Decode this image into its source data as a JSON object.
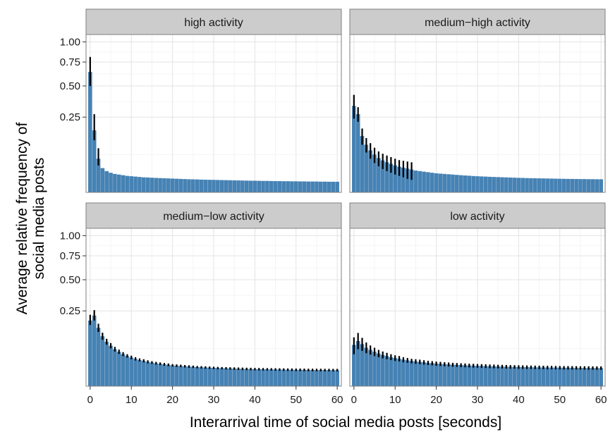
{
  "chart_data": {
    "type": "bar",
    "layout": "facet-grid 2x2",
    "xlabel": "Interarrival time of social media posts [seconds]",
    "ylabel_lines": [
      "Average relative frequency of",
      "social media posts"
    ],
    "x_ticks": [
      0,
      10,
      20,
      30,
      40,
      50,
      60
    ],
    "xlim": [
      -1,
      61
    ],
    "y_scale": "sqrt",
    "y_ticks": [
      0.25,
      0.5,
      0.75,
      1.0
    ],
    "y_tick_labels": [
      "0.25",
      "0.50",
      "0.75",
      "1.00"
    ],
    "ylim": [
      0,
      1.1
    ],
    "bar_color": "#4682b4",
    "errorbar_color": "#000000",
    "panels": [
      {
        "name": "high activity",
        "values": [
          0.64,
          0.17,
          0.05,
          0.026,
          0.02,
          0.017,
          0.015,
          0.014,
          0.013,
          0.012,
          0.0115,
          0.011,
          0.0105,
          0.01,
          0.0098,
          0.0095,
          0.0092,
          0.009,
          0.0088,
          0.0086,
          0.0084,
          0.0082,
          0.008,
          0.0078,
          0.0076,
          0.0075,
          0.0074,
          0.0072,
          0.0071,
          0.007,
          0.0069,
          0.0068,
          0.0067,
          0.0066,
          0.0065,
          0.0064,
          0.0063,
          0.0062,
          0.0061,
          0.006,
          0.006,
          0.0059,
          0.0058,
          0.0058,
          0.0057,
          0.0056,
          0.0056,
          0.0055,
          0.0055,
          0.0054,
          0.0054,
          0.0053,
          0.0053,
          0.0052,
          0.0052,
          0.0052,
          0.0051,
          0.0051,
          0.005,
          0.005,
          0.005
        ],
        "error_low": [
          0.5,
          0.12,
          0.032
        ],
        "error_high": [
          0.81,
          0.27,
          0.086
        ]
      },
      {
        "name": "medium−high activity",
        "values": [
          0.33,
          0.27,
          0.14,
          0.1,
          0.078,
          0.063,
          0.052,
          0.045,
          0.04,
          0.036,
          0.032,
          0.029,
          0.027,
          0.025,
          0.023,
          0.021,
          0.02,
          0.019,
          0.018,
          0.017,
          0.016,
          0.0155,
          0.015,
          0.0145,
          0.014,
          0.0135,
          0.013,
          0.0126,
          0.0122,
          0.0118,
          0.0115,
          0.0112,
          0.011,
          0.0107,
          0.0105,
          0.0103,
          0.0101,
          0.0099,
          0.0097,
          0.0095,
          0.0093,
          0.0092,
          0.009,
          0.0089,
          0.0088,
          0.0087,
          0.0086,
          0.0085,
          0.0084,
          0.0083,
          0.0082,
          0.0081,
          0.008,
          0.008,
          0.0079,
          0.0078,
          0.0078,
          0.0077,
          0.0077,
          0.0076,
          0.0076
        ],
        "error_low": [
          0.24,
          0.22,
          0.1,
          0.07,
          0.05,
          0.038,
          0.03,
          0.024,
          0.02,
          0.017,
          0.014,
          0.012,
          0.01,
          0.008,
          0.007
        ],
        "error_high": [
          0.42,
          0.32,
          0.18,
          0.13,
          0.107,
          0.088,
          0.074,
          0.066,
          0.06,
          0.055,
          0.05,
          0.046,
          0.044,
          0.042,
          0.04
        ]
      },
      {
        "name": "medium−low activity",
        "values": [
          0.19,
          0.22,
          0.15,
          0.11,
          0.087,
          0.072,
          0.06,
          0.052,
          0.045,
          0.04,
          0.036,
          0.033,
          0.03,
          0.028,
          0.026,
          0.0245,
          0.023,
          0.022,
          0.021,
          0.02,
          0.019,
          0.0185,
          0.018,
          0.0175,
          0.017,
          0.0165,
          0.016,
          0.0157,
          0.0154,
          0.0151,
          0.0148,
          0.0145,
          0.0143,
          0.0141,
          0.0139,
          0.0137,
          0.0135,
          0.0133,
          0.0131,
          0.013,
          0.0128,
          0.0127,
          0.0126,
          0.0125,
          0.0124,
          0.0123,
          0.0122,
          0.0121,
          0.012,
          0.0119,
          0.0118,
          0.0118,
          0.0117,
          0.0116,
          0.0116,
          0.0115,
          0.0115,
          0.0114,
          0.0114,
          0.0113,
          0.0113
        ],
        "error_low": [
          0.165,
          0.19,
          0.13,
          0.095,
          0.076,
          0.063,
          0.053,
          0.046,
          0.04,
          0.036,
          0.032,
          0.029,
          0.027,
          0.025,
          0.023,
          0.022,
          0.0205,
          0.0195,
          0.0185,
          0.0177,
          0.0169,
          0.0164,
          0.0159,
          0.0154,
          0.0149,
          0.0145,
          0.014,
          0.0137,
          0.0134,
          0.0131,
          0.0129,
          0.0126,
          0.0124,
          0.0122,
          0.012,
          0.0118,
          0.0116,
          0.0114,
          0.0113,
          0.0111,
          0.011,
          0.0109,
          0.0108,
          0.0107,
          0.0106,
          0.0105,
          0.0104,
          0.0103,
          0.0102,
          0.0101,
          0.01,
          0.01,
          0.0099,
          0.0098,
          0.0098,
          0.0097,
          0.0097,
          0.0096,
          0.0096,
          0.0095,
          0.0095
        ],
        "error_high": [
          0.225,
          0.255,
          0.172,
          0.126,
          0.099,
          0.082,
          0.068,
          0.059,
          0.051,
          0.045,
          0.041,
          0.037,
          0.034,
          0.032,
          0.0295,
          0.0275,
          0.026,
          0.0248,
          0.0237,
          0.0227,
          0.0215,
          0.0209,
          0.0203,
          0.0197,
          0.0192,
          0.0186,
          0.018,
          0.0177,
          0.0174,
          0.0171,
          0.0167,
          0.0164,
          0.0162,
          0.016,
          0.0158,
          0.0156,
          0.0154,
          0.0152,
          0.015,
          0.0149,
          0.0147,
          0.0146,
          0.0145,
          0.0144,
          0.0143,
          0.0142,
          0.0141,
          0.014,
          0.0139,
          0.0138,
          0.0137,
          0.0137,
          0.0136,
          0.0135,
          0.0135,
          0.0134,
          0.0134,
          0.0133,
          0.0133,
          0.0132,
          0.0132
        ]
      },
      {
        "name": "low activity",
        "values": [
          0.075,
          0.09,
          0.078,
          0.065,
          0.058,
          0.052,
          0.047,
          0.043,
          0.04,
          0.037,
          0.035,
          0.033,
          0.031,
          0.0295,
          0.028,
          0.027,
          0.026,
          0.025,
          0.024,
          0.0233,
          0.0226,
          0.022,
          0.0214,
          0.0209,
          0.0204,
          0.02,
          0.0196,
          0.0192,
          0.0189,
          0.0186,
          0.0183,
          0.018,
          0.0177,
          0.0175,
          0.0173,
          0.0171,
          0.0169,
          0.0167,
          0.0165,
          0.0164,
          0.0162,
          0.0161,
          0.016,
          0.0158,
          0.0157,
          0.0156,
          0.0155,
          0.0154,
          0.0153,
          0.0152,
          0.0151,
          0.015,
          0.015,
          0.0149,
          0.0148,
          0.0148,
          0.0147,
          0.0146,
          0.0146,
          0.0145,
          0.0145
        ],
        "error_low": [
          0.045,
          0.06,
          0.055,
          0.048,
          0.044,
          0.04,
          0.037,
          0.034,
          0.032,
          0.03,
          0.028,
          0.027,
          0.025,
          0.024,
          0.023,
          0.022,
          0.0213,
          0.0205,
          0.0197,
          0.0191,
          0.0185,
          0.018,
          0.0175,
          0.0171,
          0.0167,
          0.0164,
          0.016,
          0.0157,
          0.0154,
          0.0152,
          0.0149,
          0.0147,
          0.0145,
          0.0143,
          0.0141,
          0.0139,
          0.0138,
          0.0136,
          0.0135,
          0.0134,
          0.0132,
          0.0131,
          0.013,
          0.0129,
          0.0128,
          0.0127,
          0.0126,
          0.0125,
          0.0125,
          0.0124,
          0.0123,
          0.0122,
          0.0122,
          0.0121,
          0.0121,
          0.012,
          0.012,
          0.0119,
          0.0119,
          0.0118,
          0.0118
        ],
        "error_high": [
          0.105,
          0.125,
          0.103,
          0.084,
          0.073,
          0.065,
          0.058,
          0.053,
          0.049,
          0.045,
          0.042,
          0.04,
          0.037,
          0.035,
          0.033,
          0.032,
          0.031,
          0.0296,
          0.0284,
          0.0276,
          0.0267,
          0.026,
          0.0253,
          0.0247,
          0.0241,
          0.0236,
          0.0231,
          0.0227,
          0.0223,
          0.022,
          0.0216,
          0.0213,
          0.021,
          0.0207,
          0.0205,
          0.0202,
          0.02,
          0.0198,
          0.0196,
          0.0194,
          0.0192,
          0.0191,
          0.0189,
          0.0187,
          0.0186,
          0.0185,
          0.0184,
          0.0183,
          0.0181,
          0.018,
          0.0179,
          0.0178,
          0.0178,
          0.0177,
          0.0176,
          0.0175,
          0.0175,
          0.0174,
          0.0173,
          0.0172,
          0.0172
        ]
      }
    ]
  }
}
